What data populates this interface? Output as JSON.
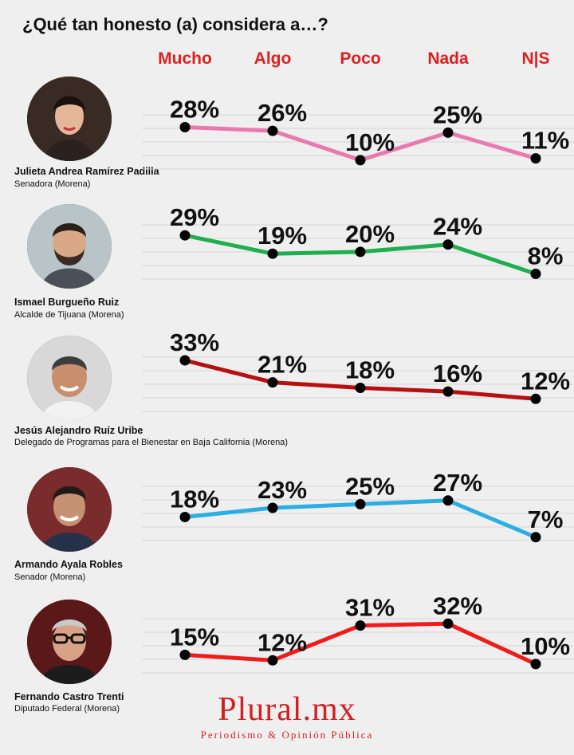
{
  "title": "¿Qué tan honesto (a) considera a…?",
  "chart_data": {
    "type": "line",
    "categories": [
      "Mucho",
      "Algo",
      "Poco",
      "Nada",
      "N|S"
    ],
    "category_color": "#e01e1e",
    "unit": "%",
    "series": [
      {
        "name": "Julieta Andrea Ramírez Padilla",
        "role": "Senadora (Morena)",
        "color": "#e87ab0",
        "values": [
          28,
          26,
          10,
          25,
          11
        ]
      },
      {
        "name": "Ismael Burgueño Ruiz",
        "role": "Alcalde de Tijuana (Morena)",
        "color": "#1faf4f",
        "values": [
          29,
          19,
          20,
          24,
          8
        ]
      },
      {
        "name": "Jesús Alejandro Ruíz Uribe",
        "role": "Delegado de Programas para el Bienestar en Baja California (Morena)",
        "color": "#b81010",
        "values": [
          33,
          21,
          18,
          16,
          12
        ]
      },
      {
        "name": "Armando Ayala Robles",
        "role": "Senador (Morena)",
        "color": "#2aaee3",
        "values": [
          18,
          23,
          25,
          27,
          7
        ]
      },
      {
        "name": "Fernando Castro Trenti",
        "role": "Diputado Federal (Morena)",
        "color": "#ee1c1c",
        "values": [
          15,
          12,
          31,
          32,
          10
        ]
      }
    ]
  },
  "brand": {
    "name": "Plural.mx",
    "tagline": "Periodismo & Opinión Pública",
    "color": "#d41f1f"
  }
}
